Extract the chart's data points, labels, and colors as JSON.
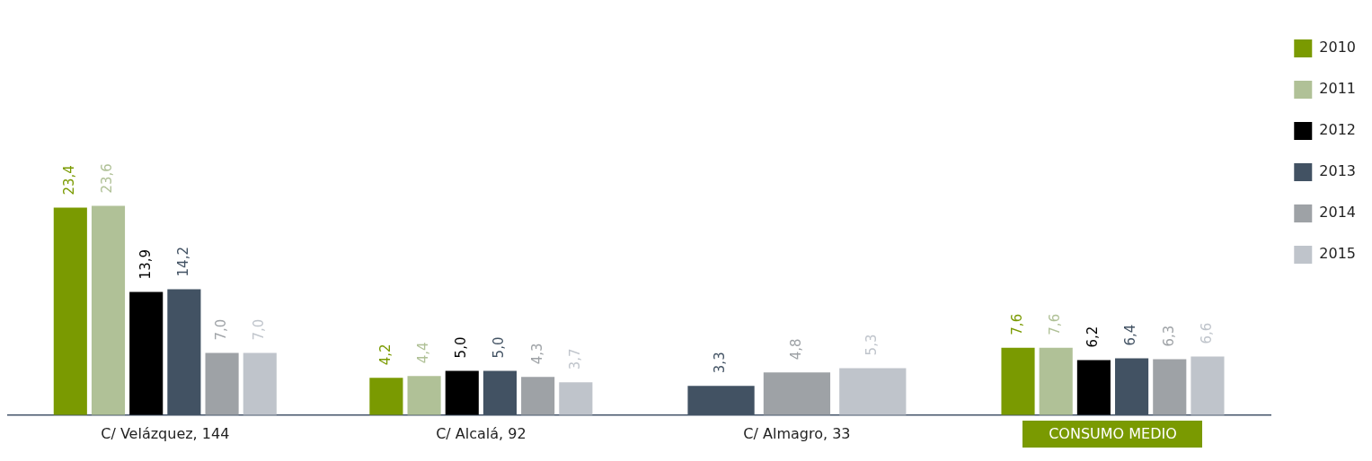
{
  "chart_data": {
    "type": "bar",
    "categories": [
      "C/ Velázquez, 144",
      "C/ Alcalá, 92",
      "C/ Almagro, 33",
      "CONSUMO MEDIO"
    ],
    "series": [
      {
        "name": "2010",
        "color": "#7a9a01",
        "values": [
          23.4,
          4.2,
          null,
          7.6
        ],
        "value_labels": [
          "23,4",
          "4,2",
          null,
          "7,6"
        ]
      },
      {
        "name": "2011",
        "color": "#b0c197",
        "values": [
          23.6,
          4.4,
          null,
          7.6
        ],
        "value_labels": [
          "23,6",
          "4,4",
          null,
          "7,6"
        ]
      },
      {
        "name": "2012",
        "color": "#000000",
        "values": [
          13.9,
          5.0,
          null,
          6.2
        ],
        "value_labels": [
          "13,9",
          "5,0",
          null,
          "6,2"
        ]
      },
      {
        "name": "2013",
        "color": "#425263",
        "values": [
          14.2,
          5.0,
          3.3,
          6.4
        ],
        "value_labels": [
          "14,2",
          "5,0",
          "3,3",
          "6,4"
        ]
      },
      {
        "name": "2014",
        "color": "#9ea2a6",
        "values": [
          7.0,
          4.3,
          4.8,
          6.3
        ],
        "value_labels": [
          "7,0",
          "4,3",
          "4,8",
          "6,3"
        ]
      },
      {
        "name": "2015",
        "color": "#bfc4cb",
        "values": [
          7.0,
          3.7,
          5.3,
          6.6
        ],
        "value_labels": [
          "7,0",
          "3,7",
          "5,3",
          "6,6"
        ]
      }
    ],
    "legend": "top right",
    "grid": false
  }
}
